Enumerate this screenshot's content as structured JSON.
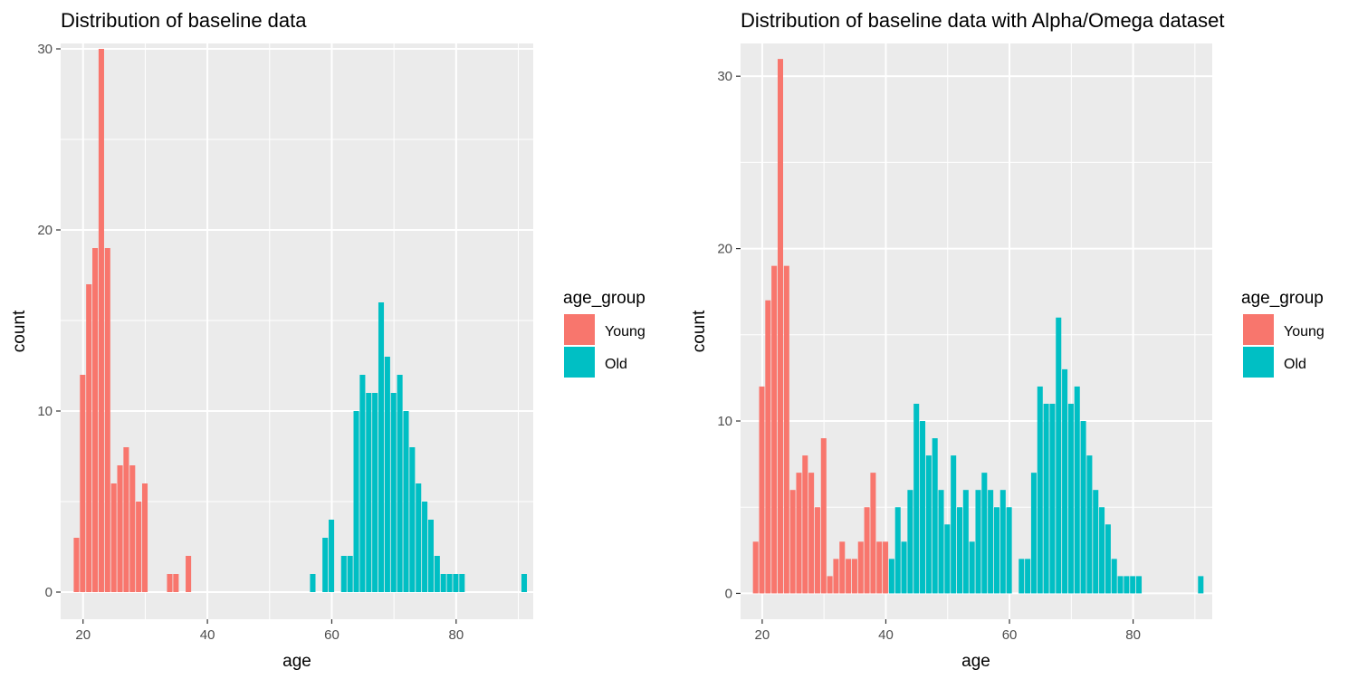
{
  "colors": {
    "young": "#F8766D",
    "old": "#00BFC4",
    "panel": "#EBEBEB",
    "grid": "#FFFFFF",
    "tick_text": "#4D4D4D"
  },
  "chart_data": [
    {
      "type": "bar",
      "title": "Distribution of baseline data",
      "xlabel": "age",
      "ylabel": "count",
      "xlim": [
        16.4,
        92.4
      ],
      "ylim": [
        -1.5,
        30.3
      ],
      "x_ticks": [
        20,
        40,
        60,
        80
      ],
      "y_ticks": [
        0,
        10,
        20,
        30
      ],
      "bin_width": 1,
      "grid": true,
      "legend": {
        "title": "age_group",
        "position": "right",
        "items": [
          "Young",
          "Old"
        ]
      },
      "series": [
        {
          "name": "Young",
          "x": [
            19,
            20,
            21,
            22,
            23,
            24,
            25,
            26,
            27,
            28,
            29,
            30,
            34,
            35,
            37
          ],
          "values": [
            3,
            12,
            17,
            19,
            30,
            19,
            6,
            7,
            8,
            7,
            5,
            6,
            1,
            1,
            2
          ]
        },
        {
          "name": "Old",
          "x": [
            57,
            59,
            60,
            62,
            63,
            64,
            65,
            66,
            67,
            68,
            69,
            70,
            71,
            72,
            73,
            74,
            75,
            76,
            77,
            78,
            79,
            80,
            81,
            91
          ],
          "values": [
            1,
            3,
            4,
            2,
            2,
            10,
            12,
            11,
            11,
            16,
            13,
            11,
            12,
            10,
            8,
            6,
            5,
            4,
            2,
            1,
            1,
            1,
            1,
            1
          ]
        }
      ]
    },
    {
      "type": "bar",
      "title": "Distribution of baseline data with Alpha/Omega dataset",
      "xlabel": "age",
      "ylabel": "count",
      "xlim": [
        16.5,
        92.8
      ],
      "ylim": [
        -1.5,
        31.9
      ],
      "x_ticks": [
        20,
        40,
        60,
        80
      ],
      "y_ticks": [
        0,
        10,
        20,
        30
      ],
      "bin_width": 1,
      "grid": true,
      "legend": {
        "title": "age_group",
        "position": "right",
        "items": [
          "Young",
          "Old"
        ]
      },
      "series": [
        {
          "name": "Young",
          "x": [
            19,
            20,
            21,
            22,
            23,
            24,
            25,
            26,
            27,
            28,
            29,
            30,
            31,
            32,
            33,
            34,
            35,
            36,
            37,
            38,
            39,
            40
          ],
          "values": [
            3,
            12,
            17,
            19,
            31,
            19,
            6,
            7,
            8,
            7,
            5,
            9,
            1,
            2,
            3,
            2,
            2,
            3,
            5,
            7,
            3,
            3
          ]
        },
        {
          "name": "Old",
          "x": [
            41,
            42,
            43,
            44,
            45,
            46,
            47,
            48,
            49,
            50,
            51,
            52,
            53,
            54,
            55,
            56,
            57,
            58,
            59,
            60,
            62,
            63,
            64,
            65,
            66,
            67,
            68,
            69,
            70,
            71,
            72,
            73,
            74,
            75,
            76,
            77,
            78,
            79,
            80,
            81,
            91
          ],
          "values": [
            2,
            5,
            3,
            6,
            11,
            10,
            8,
            9,
            6,
            4,
            8,
            5,
            6,
            3,
            6,
            7,
            6,
            5,
            6,
            5,
            2,
            2,
            7,
            12,
            11,
            11,
            16,
            13,
            11,
            12,
            10,
            8,
            6,
            5,
            4,
            2,
            1,
            1,
            1,
            1,
            1
          ]
        }
      ]
    }
  ]
}
